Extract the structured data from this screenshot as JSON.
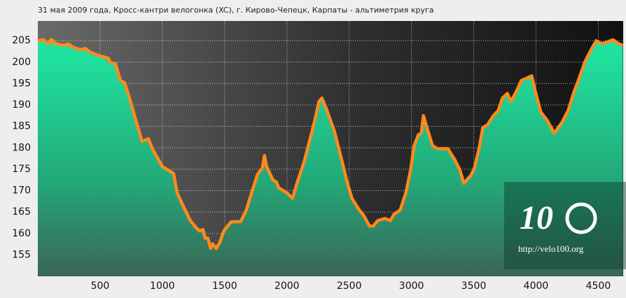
{
  "chart_data": {
    "type": "area",
    "title": "31 мая 2009 года, Кросс-кантри велогонка (XC), г. Кирово-Чепецк, Карпаты - альтиметрия круга",
    "logo": "10",
    "watermark": "http://velo100.org",
    "x": [
      0,
      45,
      90,
      107,
      146,
      202,
      247,
      287,
      343,
      382,
      416,
      483,
      567,
      584,
      624,
      663,
      697,
      736,
      792,
      837,
      888,
      921,
      1000,
      1090,
      1118,
      1169,
      1225,
      1270,
      1298,
      1326,
      1343,
      1365,
      1388,
      1404,
      1433,
      1461,
      1494,
      1551,
      1629,
      1674,
      1708,
      1764,
      1803,
      1820,
      1837,
      1888,
      1916,
      1933,
      2000,
      2045,
      2084,
      2140,
      2213,
      2258,
      2281,
      2315,
      2382,
      2449,
      2483,
      2522,
      2573,
      2618,
      2663,
      2691,
      2730,
      2787,
      2831,
      2860,
      2910,
      2955,
      2994,
      3022,
      3056,
      3079,
      3096,
      3124,
      3169,
      3208,
      3292,
      3348,
      3388,
      3421,
      3478,
      3506,
      3545,
      3573,
      3612,
      3657,
      3697,
      3730,
      3770,
      3798,
      3843,
      3882,
      3921,
      3966,
      3994,
      4039,
      4090,
      4146,
      4208,
      4258,
      4303,
      4346,
      4393,
      4444,
      4483,
      4528,
      4573,
      4618,
      4663,
      4697
    ],
    "series": [
      {
        "color": "#ff8a1c",
        "values": [
          205,
          205.2,
          204.2,
          205.3,
          204.3,
          203.9,
          204.2,
          203.4,
          202.9,
          203.2,
          202.4,
          201.6,
          200.9,
          199.8,
          199.6,
          195.7,
          195.2,
          191.6,
          185.9,
          181.5,
          182.1,
          179.7,
          175.6,
          174,
          169.5,
          166.3,
          163,
          161.4,
          160.6,
          160.9,
          158.9,
          158.9,
          156.5,
          157.6,
          156.5,
          157.9,
          160.6,
          162.7,
          162.8,
          165.5,
          168.7,
          173.8,
          175.3,
          178.2,
          175.6,
          172.5,
          172,
          170.7,
          169.5,
          168.2,
          172,
          176.9,
          185.1,
          190.8,
          191.6,
          189.2,
          183.8,
          176.1,
          172,
          168.2,
          165.8,
          164.1,
          161.7,
          161.7,
          163,
          163.5,
          163,
          164.5,
          165.5,
          169.5,
          174.9,
          180.5,
          183.1,
          183.4,
          187.5,
          184.7,
          180.5,
          179.8,
          179.8,
          177.2,
          174.9,
          171.7,
          173.6,
          175.3,
          180.2,
          184.7,
          185.4,
          187.5,
          188.7,
          191.6,
          192.7,
          190.8,
          193.2,
          195.7,
          196.2,
          196.8,
          193.2,
          188.3,
          186.4,
          183.4,
          185.9,
          188.7,
          192.9,
          196.2,
          200.1,
          203,
          205,
          204.3,
          204.7,
          205.2,
          204.3,
          203.9
        ]
      }
    ],
    "xlim": [
      0,
      4700
    ],
    "xticks": [
      500,
      1000,
      1500,
      2000,
      2500,
      3000,
      3500,
      4000,
      4500
    ],
    "ylim": [
      150,
      209.6
    ],
    "yticks": [
      155,
      160,
      165,
      170,
      175,
      180,
      185,
      190,
      195,
      200,
      205
    ],
    "grid": true
  }
}
